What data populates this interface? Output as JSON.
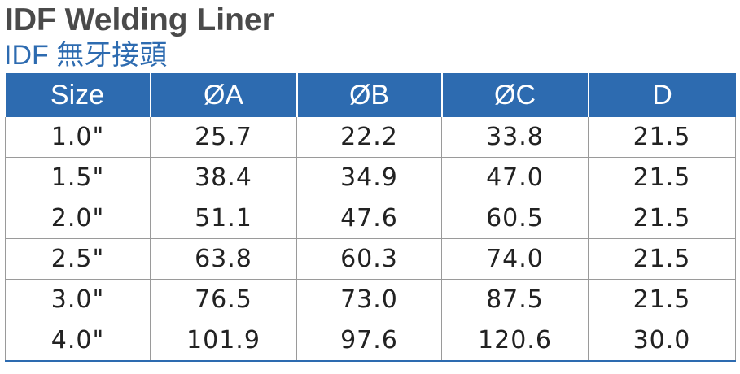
{
  "title": {
    "english": "IDF Welding Liner",
    "chinese": "IDF 無牙接頭"
  },
  "table": {
    "headers": [
      "Size",
      "ØA",
      "ØB",
      "ØC",
      "D"
    ],
    "rows": [
      [
        "1.0\"",
        "25.7",
        "22.2",
        "33.8",
        "21.5"
      ],
      [
        "1.5\"",
        "38.4",
        "34.9",
        "47.0",
        "21.5"
      ],
      [
        "2.0\"",
        "51.1",
        "47.6",
        "60.5",
        "21.5"
      ],
      [
        "2.5\"",
        "63.8",
        "60.3",
        "74.0",
        "21.5"
      ],
      [
        "3.0\"",
        "76.5",
        "73.0",
        "87.5",
        "21.5"
      ],
      [
        "4.0\"",
        "101.9",
        "97.6",
        "120.6",
        "30.0"
      ]
    ]
  },
  "colors": {
    "header_blue": "#2d6bb0",
    "title_gray": "#4a4a4a"
  }
}
